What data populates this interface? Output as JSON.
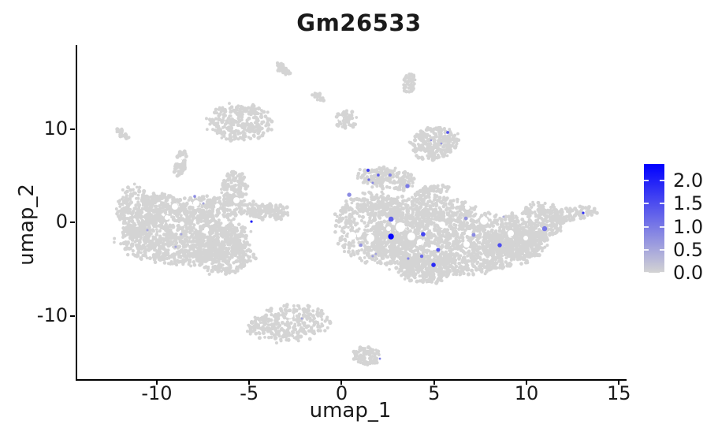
{
  "title": "Gm26533",
  "chart_data": {
    "type": "scatter",
    "subtype": "umap-feature-plot",
    "title": "Gm26533",
    "xlabel": "umap_1",
    "ylabel": "umap_2",
    "xlim": [
      -14.39,
      15.33
    ],
    "ylim": [
      -16.79,
      18.99
    ],
    "grid": false,
    "x_ticks": [
      {
        "value": -10,
        "label": "-10"
      },
      {
        "value": -5,
        "label": "-5"
      },
      {
        "value": 0,
        "label": "0"
      },
      {
        "value": 5,
        "label": "5"
      },
      {
        "value": 10,
        "label": "10"
      },
      {
        "value": 15,
        "label": "15"
      }
    ],
    "y_ticks": [
      {
        "value": 10,
        "label": "10"
      },
      {
        "value": 0,
        "label": "0"
      },
      {
        "value": -10,
        "label": "-10"
      }
    ],
    "colorbar": {
      "position": "right",
      "low_color": "#d3d3d3",
      "high_color": "#0000ff",
      "value_min": 0.0,
      "value_max": 2.36,
      "ticks": [
        {
          "value": 2.0,
          "label": "2.0"
        },
        {
          "value": 1.5,
          "label": "1.5"
        },
        {
          "value": 1.0,
          "label": "1.0"
        },
        {
          "value": 0.5,
          "label": "0.5"
        },
        {
          "value": 0.0,
          "label": "0.0"
        }
      ]
    },
    "background_point_color": "#d4d4d4",
    "background_point_radius_px": 2.1,
    "background_clusters": [
      {
        "name": "left-island-main",
        "cx": -8.51,
        "cy": -1.77,
        "rx": 3.41,
        "ry": 2.62,
        "rot": 0,
        "n": 950
      },
      {
        "name": "left-island-west-hump",
        "cx": -11.15,
        "cy": 1.18,
        "rx": 0.94,
        "ry": 2.7,
        "rot": 0,
        "n": 240
      },
      {
        "name": "left-island-top-band",
        "cx": -7.19,
        "cy": 1.6,
        "rx": 2.56,
        "ry": 1.18,
        "rot": 0,
        "n": 300
      },
      {
        "name": "left-island-peninsula",
        "cx": -5.82,
        "cy": 3.8,
        "rx": 0.68,
        "ry": 1.69,
        "rot": 0,
        "n": 130
      },
      {
        "name": "left-island-east-arm",
        "cx": -3.9,
        "cy": 1.1,
        "rx": 1.15,
        "ry": 0.84,
        "rot": 0,
        "n": 130
      },
      {
        "name": "left-island-south-tail",
        "cx": -6.42,
        "cy": -3.38,
        "rx": 1.62,
        "ry": 2.19,
        "rot": 0,
        "n": 280
      },
      {
        "name": "left-island-nw-bumps",
        "cx": -9.79,
        "cy": 2.03,
        "rx": 1.11,
        "ry": 1.01,
        "rot": 0,
        "n": 110
      },
      {
        "name": "right-island-main",
        "cx": 5.99,
        "cy": -2.19,
        "rx": 4.61,
        "ry": 3.38,
        "rot": 0,
        "n": 1500
      },
      {
        "name": "right-island-west-lobe",
        "cx": 1.81,
        "cy": -0.51,
        "rx": 2.22,
        "ry": 3.54,
        "rot": 0,
        "n": 480
      },
      {
        "name": "right-island-top-band",
        "cx": 3.99,
        "cy": 1.52,
        "rx": 3.2,
        "ry": 1.18,
        "rot": 0,
        "n": 320
      },
      {
        "name": "right-island-east-wing",
        "cx": 10.51,
        "cy": 0.0,
        "rx": 1.49,
        "ry": 2.03,
        "rot": -8,
        "n": 300
      },
      {
        "name": "right-island-east-tip",
        "cx": 12.6,
        "cy": 0.93,
        "rx": 1.19,
        "ry": 0.68,
        "rot": -8,
        "n": 110
      },
      {
        "name": "right-island-top-hook",
        "cx": 2.41,
        "cy": 4.73,
        "rx": 1.54,
        "ry": 1.18,
        "rot": 8,
        "n": 200
      },
      {
        "name": "right-island-top-strip",
        "cx": 4.88,
        "cy": 3.29,
        "rx": 0.94,
        "ry": 0.59,
        "rot": -12,
        "n": 70
      },
      {
        "name": "right-island-south-bulge",
        "cx": 4.5,
        "cy": -4.98,
        "rx": 1.45,
        "ry": 1.52,
        "rot": 0,
        "n": 220
      },
      {
        "name": "right-island-se-shelf",
        "cx": 9.32,
        "cy": -2.53,
        "rx": 1.71,
        "ry": 1.43,
        "rot": 0,
        "n": 240
      },
      {
        "name": "sat-top-dash",
        "cx": -3.18,
        "cy": 16.37,
        "rx": 0.47,
        "ry": 0.42,
        "rot": 35,
        "n": 36
      },
      {
        "name": "sat-mid-dash",
        "cx": -1.3,
        "cy": 13.5,
        "rx": 0.38,
        "ry": 0.34,
        "rot": 35,
        "n": 26
      },
      {
        "name": "sat-top-right-blob",
        "cx": 3.69,
        "cy": 15.02,
        "rx": 0.34,
        "ry": 1.1,
        "rot": 15,
        "n": 42
      },
      {
        "name": "sat-comma",
        "cx": 0.23,
        "cy": 10.97,
        "rx": 0.6,
        "ry": 0.93,
        "rot": 0,
        "n": 55
      },
      {
        "name": "sat-nw-medium-blob",
        "cx": -5.56,
        "cy": 10.72,
        "rx": 1.71,
        "ry": 1.86,
        "rot": 0,
        "n": 270
      },
      {
        "name": "sat-far-west-dash",
        "cx": -11.83,
        "cy": 9.45,
        "rx": 0.38,
        "ry": 0.38,
        "rot": 35,
        "n": 28
      },
      {
        "name": "sat-west-comma",
        "cx": -8.72,
        "cy": 6.33,
        "rx": 0.3,
        "ry": 1.43,
        "rot": 10,
        "n": 55
      },
      {
        "name": "sat-upper-right-blob",
        "cx": 5.05,
        "cy": 8.44,
        "rx": 1.28,
        "ry": 1.69,
        "rot": -10,
        "n": 270
      },
      {
        "name": "sat-bottom-left-island",
        "cx": -2.79,
        "cy": -10.8,
        "rx": 2.13,
        "ry": 1.86,
        "rot": -5,
        "n": 300
      },
      {
        "name": "sat-bottom-small",
        "cx": 1.39,
        "cy": -14.26,
        "rx": 0.77,
        "ry": 0.93,
        "rot": 0,
        "n": 80
      }
    ],
    "white_gaps": [
      {
        "x": 3.18,
        "y": -0.51,
        "r": 6
      },
      {
        "x": 3.77,
        "y": -1.52,
        "r": 5
      },
      {
        "x": 0.58,
        "y": -1.43,
        "r": 5
      },
      {
        "x": 1.56,
        "y": -1.69,
        "r": 5
      },
      {
        "x": 2.54,
        "y": -0.68,
        "r": 3
      },
      {
        "x": 4.24,
        "y": -2.11,
        "r": 4
      },
      {
        "x": 5.44,
        "y": -0.25,
        "r": 4
      },
      {
        "x": 6.76,
        "y": -2.36,
        "r": 4
      },
      {
        "x": 7.7,
        "y": 0.17,
        "r": 5
      },
      {
        "x": 9.15,
        "y": -1.18,
        "r": 4
      },
      {
        "x": 9.96,
        "y": -1.69,
        "r": 3
      },
      {
        "x": 6.8,
        "y": 1.6,
        "r": 3
      },
      {
        "x": -9.02,
        "y": 1.69,
        "r": 4
      },
      {
        "x": -7.87,
        "y": 2.03,
        "r": 4
      },
      {
        "x": -6.72,
        "y": 1.77,
        "r": 3
      },
      {
        "x": -5.69,
        "y": 2.36,
        "r": 4
      },
      {
        "x": -8.64,
        "y": -0.17,
        "r": 3
      },
      {
        "x": -7.31,
        "y": -0.76,
        "r": 3
      },
      {
        "x": -9.45,
        "y": 0.51,
        "r": 3
      },
      {
        "x": -2.79,
        "y": -9.96,
        "r": 4
      },
      {
        "x": -0.06,
        "y": 11.14,
        "r": 3
      },
      {
        "x": -8.76,
        "y": 6.58,
        "r": 3
      }
    ],
    "expressing_cells": [
      {
        "x": 2.67,
        "y": 0.34,
        "expr": 1.3,
        "r": 3.3
      },
      {
        "x": 2.67,
        "y": -1.52,
        "expr": 2.3,
        "r": 3.7
      },
      {
        "x": 4.41,
        "y": -1.27,
        "expr": 1.6,
        "r": 2.8
      },
      {
        "x": 3.56,
        "y": 3.88,
        "expr": 1.0,
        "r": 2.7
      },
      {
        "x": 0.41,
        "y": 2.95,
        "expr": 0.8,
        "r": 2.7
      },
      {
        "x": 1.04,
        "y": -2.45,
        "expr": 0.7,
        "r": 2.2
      },
      {
        "x": 5.22,
        "y": -2.95,
        "expr": 1.4,
        "r": 2.5
      },
      {
        "x": 4.33,
        "y": -3.63,
        "expr": 1.2,
        "r": 2.2
      },
      {
        "x": 4.97,
        "y": -4.56,
        "expr": 1.9,
        "r": 2.8
      },
      {
        "x": 7.14,
        "y": -1.35,
        "expr": 0.8,
        "r": 2.5
      },
      {
        "x": 6.72,
        "y": 0.42,
        "expr": 0.7,
        "r": 2.3
      },
      {
        "x": 8.55,
        "y": -2.45,
        "expr": 1.5,
        "r": 2.7
      },
      {
        "x": 10.98,
        "y": -0.68,
        "expr": 1.0,
        "r": 3.2
      },
      {
        "x": 13.07,
        "y": 1.01,
        "expr": 1.8,
        "r": 1.6
      },
      {
        "x": 1.43,
        "y": 5.57,
        "expr": 1.7,
        "r": 2.0
      },
      {
        "x": 1.98,
        "y": 5.06,
        "expr": 1.3,
        "r": 1.8
      },
      {
        "x": 2.62,
        "y": 5.06,
        "expr": 0.9,
        "r": 2.0
      },
      {
        "x": 1.47,
        "y": 4.56,
        "expr": 1.2,
        "r": 1.6
      },
      {
        "x": -4.88,
        "y": 0.08,
        "expr": 2.0,
        "r": 1.6
      },
      {
        "x": -10.51,
        "y": -0.84,
        "expr": 0.5,
        "r": 1.5
      },
      {
        "x": -8.68,
        "y": -1.27,
        "expr": 0.5,
        "r": 1.5
      },
      {
        "x": -7.95,
        "y": 2.78,
        "expr": 0.8,
        "r": 1.8
      },
      {
        "x": -7.48,
        "y": 2.03,
        "expr": 0.5,
        "r": 1.5
      },
      {
        "x": -8.98,
        "y": -2.62,
        "expr": 0.5,
        "r": 1.5
      },
      {
        "x": 5.74,
        "y": 9.62,
        "expr": 1.4,
        "r": 1.9
      },
      {
        "x": 4.84,
        "y": 8.78,
        "expr": 0.7,
        "r": 1.3
      },
      {
        "x": 5.39,
        "y": 8.44,
        "expr": 0.7,
        "r": 1.3
      },
      {
        "x": 2.07,
        "y": -14.6,
        "expr": 0.9,
        "r": 1.4
      },
      {
        "x": 1.68,
        "y": 4.22,
        "expr": 0.8,
        "r": 1.5
      },
      {
        "x": -2.15,
        "y": -10.3,
        "expr": 0.5,
        "r": 1.4
      },
      {
        "x": 1.68,
        "y": -3.63,
        "expr": 0.6,
        "r": 1.5
      },
      {
        "x": 3.6,
        "y": -3.88,
        "expr": 0.9,
        "r": 1.6
      },
      {
        "x": 8.76,
        "y": 0.59,
        "expr": 0.4,
        "r": 1.5
      },
      {
        "x": 1.85,
        "y": -3.38,
        "expr": 0.5,
        "r": 1.4
      }
    ]
  }
}
